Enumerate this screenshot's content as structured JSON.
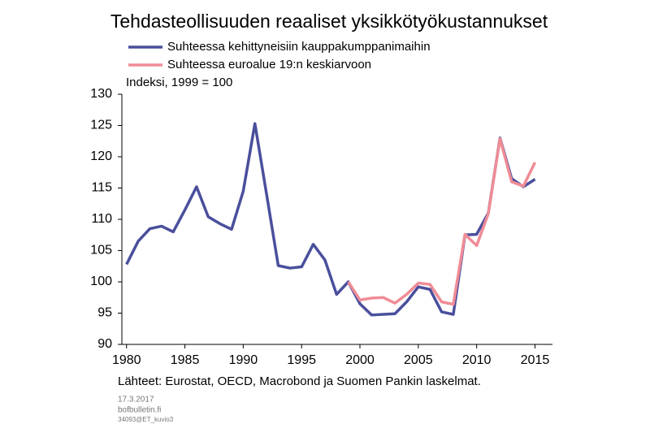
{
  "chart_data": {
    "type": "line",
    "title": "Tehdasteollisuuden reaaliset yksikkötyökustannukset",
    "ylabel": "Indeksi, 1999 = 100",
    "source": "Lähteet: Eurostat, OECD, Macrobond ja Suomen Pankin laskelmat.",
    "footer": [
      "17.3.2017",
      "bofbulletin.fi",
      "34093@ET_kuvio3"
    ],
    "x": [
      1980,
      1981,
      1982,
      1983,
      1984,
      1985,
      1986,
      1987,
      1988,
      1989,
      1990,
      1991,
      1992,
      1993,
      1994,
      1995,
      1996,
      1997,
      1998,
      1999,
      2000,
      2001,
      2002,
      2003,
      2004,
      2005,
      2006,
      2007,
      2008,
      2009,
      2010,
      2011,
      2012,
      2013,
      2014,
      2015
    ],
    "series": [
      {
        "name": "Suhteessa kehittyneisiin kauppakumppanimaihin",
        "color": "#4a4f9c",
        "values": [
          102.8,
          106.5,
          108.5,
          108.9,
          108.0,
          111.5,
          115.2,
          110.4,
          109.3,
          108.4,
          114.5,
          125.3,
          114.0,
          102.6,
          102.2,
          102.4,
          106.0,
          103.5,
          98.0,
          100.0,
          96.5,
          94.7,
          94.8,
          94.9,
          96.8,
          99.2,
          98.8,
          95.2,
          94.8,
          107.5,
          107.6,
          111.0,
          123.0,
          116.5,
          115.2,
          116.4
        ]
      },
      {
        "name": "Suhteessa euroalue 19:n keskiarvoon",
        "color": "#f08c96",
        "values": [
          null,
          null,
          null,
          null,
          null,
          null,
          null,
          null,
          null,
          null,
          null,
          null,
          null,
          null,
          null,
          null,
          null,
          null,
          null,
          100.0,
          97.1,
          97.4,
          97.5,
          96.6,
          98.0,
          99.8,
          99.6,
          96.8,
          96.4,
          107.6,
          105.8,
          110.9,
          122.9,
          116.0,
          115.3,
          119.1
        ]
      }
    ],
    "xlim": [
      1979.6,
      2016.5
    ],
    "xticks": [
      1980,
      1985,
      1990,
      1995,
      2000,
      2005,
      2010,
      2015
    ],
    "ylim": [
      90,
      130
    ],
    "yticks": [
      90,
      95,
      100,
      105,
      110,
      115,
      120,
      125,
      130
    ],
    "grid": false
  }
}
